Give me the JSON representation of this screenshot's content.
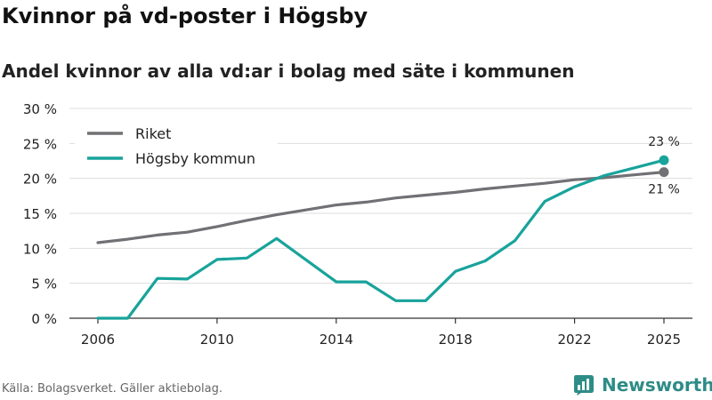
{
  "header": {
    "title": "Kvinnor på vd-poster i Högsby",
    "subtitle": "Andel kvinnor av alla vd:ar i bolag med säte i kommunen"
  },
  "footer": {
    "source": "Källa: Bolagsverket. Gäller aktiebolag.",
    "brand": "Newsworthy"
  },
  "colors": {
    "riket": "#717074",
    "hogsby": "#18a39b",
    "grid": "#dddddd",
    "axis": "#333333",
    "brand": "#2e8c87"
  },
  "chart_data": {
    "type": "line",
    "x": [
      2006,
      2007,
      2008,
      2009,
      2010,
      2011,
      2012,
      2013,
      2014,
      2015,
      2016,
      2017,
      2018,
      2019,
      2020,
      2021,
      2022,
      2023,
      2024,
      2025
    ],
    "series": [
      {
        "name": "Riket",
        "values": [
          10.8,
          11.3,
          11.9,
          12.3,
          13.1,
          14.0,
          14.8,
          15.5,
          16.2,
          16.6,
          17.2,
          17.6,
          18.0,
          18.5,
          18.9,
          19.3,
          19.8,
          20.1,
          20.5,
          20.9
        ],
        "end_label": "21 %"
      },
      {
        "name": "Högsby kommun",
        "values": [
          0,
          0,
          5.7,
          5.6,
          8.4,
          8.6,
          11.4,
          8.3,
          5.2,
          5.2,
          2.5,
          2.5,
          6.7,
          8.2,
          11.1,
          16.7,
          18.8,
          20.4,
          21.5,
          22.6
        ],
        "end_label": "23 %"
      }
    ],
    "title": "Kvinnor på vd-poster i Högsby",
    "subtitle": "Andel kvinnor av alla vd:ar i bolag med säte i kommunen",
    "xlabel": "",
    "ylabel": "",
    "xlim": [
      2006,
      2025
    ],
    "ylim": [
      0,
      30
    ],
    "y_ticks": [
      0,
      5,
      10,
      15,
      20,
      25,
      30
    ],
    "y_tick_labels": [
      "0 %",
      "5 %",
      "10 %",
      "15 %",
      "20 %",
      "25 %",
      "30 %"
    ],
    "x_ticks": [
      2006,
      2010,
      2014,
      2018,
      2022,
      2025
    ],
    "x_tick_labels": [
      "2006",
      "2010",
      "2014",
      "2018",
      "2022",
      "2025"
    ],
    "grid": true,
    "legend_position": "top-left"
  }
}
